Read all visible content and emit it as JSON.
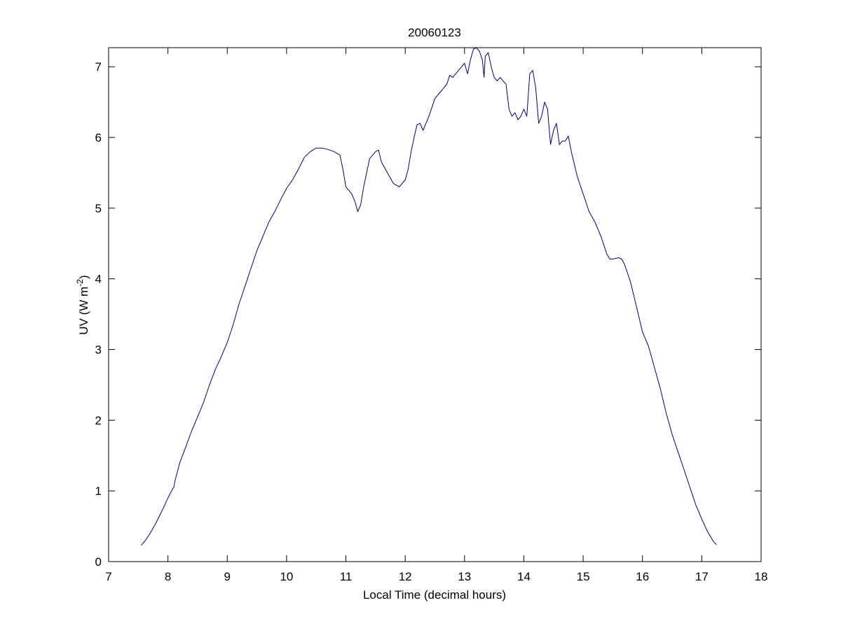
{
  "chart_data": {
    "type": "line",
    "title": "20060123",
    "xlabel": "Local Time (decimal hours)",
    "ylabel_main": "UV (W m",
    "ylabel_sup": "-2",
    "ylabel_close": ")",
    "xlim": [
      7,
      18
    ],
    "ylim": [
      0,
      7.27
    ],
    "xticks": [
      7,
      8,
      9,
      10,
      11,
      12,
      13,
      14,
      15,
      16,
      17,
      18
    ],
    "yticks": [
      0,
      1,
      2,
      3,
      4,
      5,
      6,
      7
    ],
    "grid": false,
    "line_color": "#000080",
    "series": [
      {
        "x": [
          7.55,
          7.62,
          7.7,
          7.8,
          7.9,
          8.0,
          8.08,
          8.1,
          8.12,
          8.2,
          8.3,
          8.4,
          8.5,
          8.6,
          8.7,
          8.8,
          8.9,
          9.0,
          9.1,
          9.2,
          9.3,
          9.4,
          9.5,
          9.6,
          9.7,
          9.8,
          9.9,
          10.0,
          10.1,
          10.2,
          10.3,
          10.4,
          10.5,
          10.6,
          10.7,
          10.8,
          10.9,
          10.95,
          11.0,
          11.1,
          11.15,
          11.2,
          11.25,
          11.3,
          11.4,
          11.5,
          11.55,
          11.6,
          11.7,
          11.8,
          11.9,
          12.0,
          12.05,
          12.1,
          12.15,
          12.2,
          12.25,
          12.3,
          12.4,
          12.5,
          12.6,
          12.7,
          12.75,
          12.8,
          12.9,
          13.0,
          13.05,
          13.1,
          13.15,
          13.2,
          13.25,
          13.3,
          13.33,
          13.35,
          13.4,
          13.45,
          13.5,
          13.55,
          13.6,
          13.7,
          13.75,
          13.8,
          13.85,
          13.9,
          13.95,
          14.0,
          14.05,
          14.1,
          14.15,
          14.2,
          14.25,
          14.3,
          14.35,
          14.4,
          14.45,
          14.5,
          14.55,
          14.6,
          14.65,
          14.7,
          14.75,
          14.8,
          14.9,
          15.0,
          15.1,
          15.2,
          15.3,
          15.4,
          15.45,
          15.5,
          15.6,
          15.65,
          15.7,
          15.8,
          15.9,
          16.0,
          16.1,
          16.2,
          16.3,
          16.4,
          16.5,
          16.6,
          16.7,
          16.8,
          16.9,
          17.0,
          17.1,
          17.2,
          17.25
        ],
        "y": [
          0.23,
          0.3,
          0.4,
          0.55,
          0.72,
          0.9,
          1.03,
          1.05,
          1.15,
          1.4,
          1.62,
          1.85,
          2.05,
          2.25,
          2.5,
          2.72,
          2.9,
          3.1,
          3.35,
          3.65,
          3.9,
          4.15,
          4.4,
          4.6,
          4.8,
          4.95,
          5.12,
          5.28,
          5.4,
          5.55,
          5.72,
          5.8,
          5.85,
          5.85,
          5.83,
          5.8,
          5.75,
          5.55,
          5.3,
          5.2,
          5.1,
          4.95,
          5.05,
          5.3,
          5.7,
          5.8,
          5.82,
          5.65,
          5.5,
          5.35,
          5.3,
          5.4,
          5.55,
          5.8,
          6.0,
          6.18,
          6.2,
          6.1,
          6.3,
          6.55,
          6.65,
          6.75,
          6.88,
          6.85,
          6.95,
          7.05,
          6.9,
          7.1,
          7.25,
          7.27,
          7.22,
          7.1,
          6.85,
          7.15,
          7.2,
          7.0,
          6.85,
          6.8,
          6.85,
          6.75,
          6.4,
          6.3,
          6.35,
          6.25,
          6.3,
          6.4,
          6.3,
          6.9,
          6.95,
          6.7,
          6.2,
          6.3,
          6.5,
          6.4,
          5.9,
          6.1,
          6.2,
          5.9,
          5.95,
          5.95,
          6.02,
          5.8,
          5.45,
          5.2,
          4.95,
          4.8,
          4.6,
          4.35,
          4.28,
          4.28,
          4.3,
          4.28,
          4.2,
          3.95,
          3.6,
          3.25,
          3.05,
          2.75,
          2.45,
          2.1,
          1.8,
          1.55,
          1.3,
          1.05,
          0.8,
          0.6,
          0.42,
          0.28,
          0.24
        ]
      }
    ]
  }
}
